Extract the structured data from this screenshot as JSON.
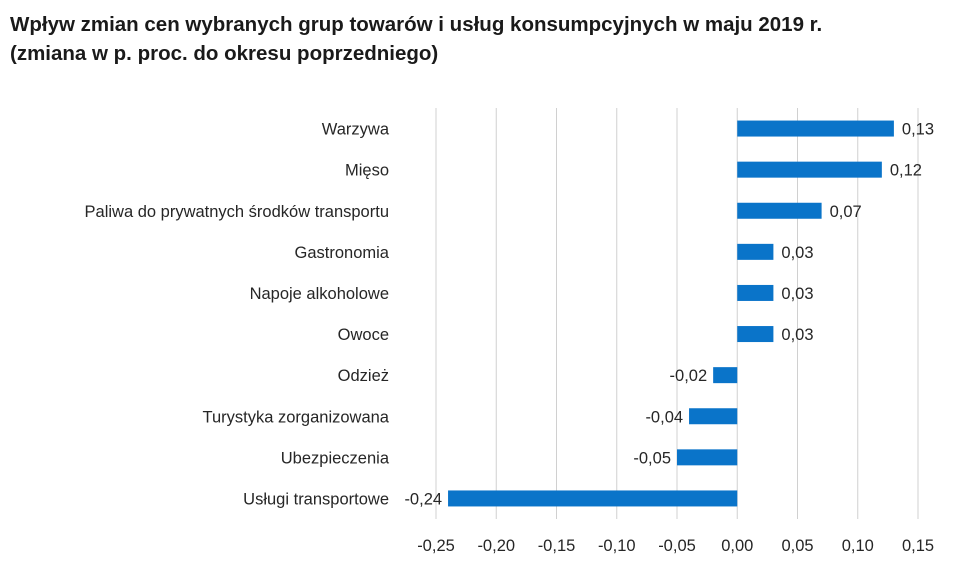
{
  "chart_data": {
    "type": "bar",
    "orientation": "horizontal",
    "title": "Wpływ zmian cen wybranych grup towarów i usług konsumpcyjnych w maju 2019 r.",
    "subtitle": "(zmiana w p. proc. do okresu poprzedniego)",
    "categories": [
      "Warzywa",
      "Mięso",
      "Paliwa do prywatnych środków transportu",
      "Gastronomia",
      "Napoje alkoholowe",
      "Owoce",
      "Odzież",
      "Turystyka zorganizowana",
      "Ubezpieczenia",
      "Usługi transportowe"
    ],
    "values": [
      0.13,
      0.12,
      0.07,
      0.03,
      0.03,
      0.03,
      -0.02,
      -0.04,
      -0.05,
      -0.24
    ],
    "value_labels": [
      "0,13",
      "0,12",
      "0,07",
      "0,03",
      "0,03",
      "0,03",
      "-0,02",
      "-0,04",
      "-0,05",
      "-0,24"
    ],
    "xlim": [
      -0.25,
      0.15
    ],
    "xticks": [
      -0.25,
      -0.2,
      -0.15,
      -0.1,
      -0.05,
      0.0,
      0.05,
      0.1,
      0.15
    ],
    "xtick_labels": [
      "-0,25",
      "-0,20",
      "-0,15",
      "-0,10",
      "-0,05",
      "0,00",
      "0,05",
      "0,10",
      "0,15"
    ],
    "grid": true,
    "legend": "none",
    "bar_color": "#0a74c9",
    "grid_color": "#d0d0d0"
  }
}
